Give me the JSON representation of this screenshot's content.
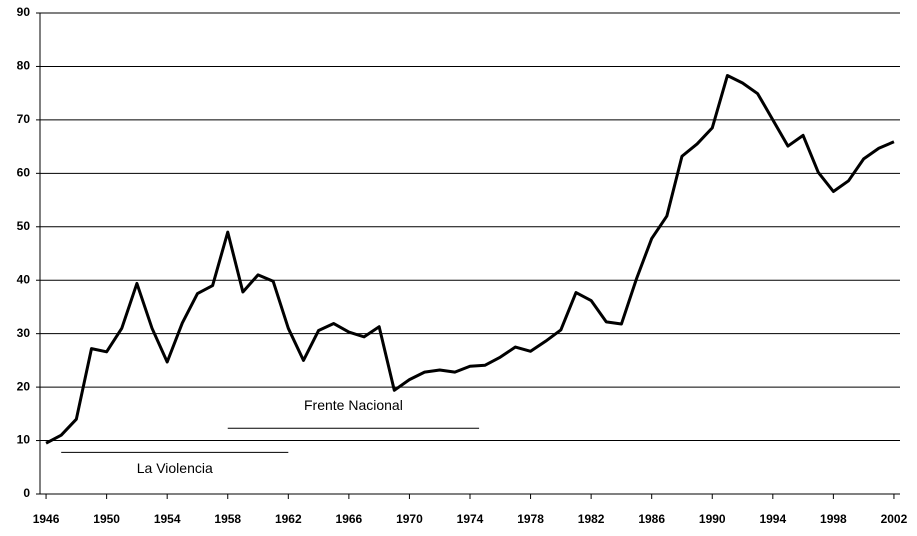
{
  "chart_data": {
    "type": "line",
    "x": [
      1946,
      1947,
      1948,
      1949,
      1950,
      1951,
      1952,
      1953,
      1954,
      1955,
      1956,
      1957,
      1958,
      1959,
      1960,
      1961,
      1962,
      1963,
      1964,
      1965,
      1966,
      1967,
      1968,
      1969,
      1970,
      1971,
      1972,
      1973,
      1974,
      1975,
      1976,
      1977,
      1978,
      1979,
      1980,
      1981,
      1982,
      1983,
      1984,
      1985,
      1986,
      1987,
      1988,
      1989,
      1990,
      1991,
      1992,
      1993,
      1994,
      1995,
      1996,
      1997,
      1998,
      1999,
      2000,
      2001,
      2002
    ],
    "series": [
      {
        "color": "#000000",
        "values": [
          9.5,
          11,
          14,
          27.2,
          26.6,
          31,
          39.4,
          31,
          24.7,
          32,
          37.5,
          39,
          49,
          37.8,
          41,
          39.8,
          31,
          25,
          30.6,
          31.9,
          30.3,
          29.4,
          31.3,
          19.4,
          21.4,
          22.8,
          23.2,
          22.8,
          23.9,
          24.1,
          25.6,
          27.5,
          26.7,
          28.6,
          30.7,
          37.7,
          36.2,
          32.2,
          31.8,
          40.3,
          47.8,
          52,
          63.2,
          65.5,
          68.5,
          78.3,
          76.9,
          74.9,
          70,
          65.1,
          67.1,
          60.2,
          56.6,
          58.6,
          62.7,
          64.7,
          65.9
        ]
      }
    ],
    "xlim": [
      1945.6,
      2002.4
    ],
    "xticks": [
      1946,
      1950,
      1954,
      1958,
      1962,
      1966,
      1970,
      1974,
      1978,
      1982,
      1986,
      1990,
      1994,
      1998,
      2002
    ],
    "ylim": [
      0,
      90
    ],
    "yticks": [
      0,
      10,
      20,
      30,
      40,
      50,
      60,
      70,
      80,
      90
    ],
    "grid": true,
    "annotations": [
      {
        "text": "Frente Nacional",
        "start": 1958,
        "end": 1974.6,
        "y": 12.3
      },
      {
        "text": "La Violencia",
        "start": 1947,
        "end": 1962,
        "y": 7.8
      }
    ]
  }
}
